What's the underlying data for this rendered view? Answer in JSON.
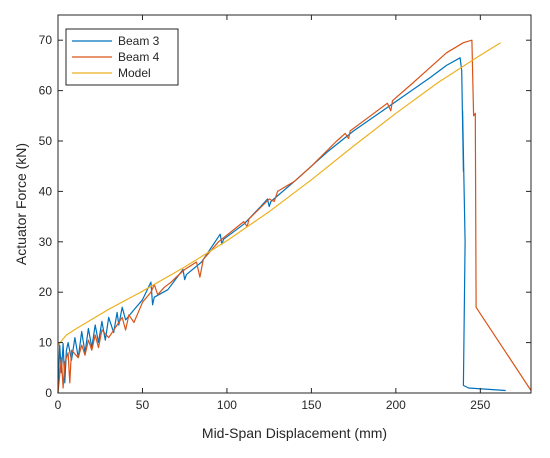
{
  "chart_data": {
    "type": "line",
    "title": "",
    "xlabel": "Mid-Span Displacement (mm)",
    "ylabel": "Actuator Force (kN)",
    "xlim": [
      0,
      280
    ],
    "ylim": [
      0,
      75
    ],
    "x_ticks": [
      0,
      50,
      100,
      150,
      200,
      250
    ],
    "y_ticks": [
      0,
      10,
      20,
      30,
      40,
      50,
      60,
      70
    ],
    "grid": false,
    "legend_position": "top-left",
    "series": [
      {
        "name": "Beam 3",
        "color": "#0072BD",
        "points": [
          [
            0,
            0
          ],
          [
            1,
            9.5
          ],
          [
            2,
            4
          ],
          [
            3,
            9.8
          ],
          [
            4,
            2
          ],
          [
            5,
            8.5
          ],
          [
            6,
            10
          ],
          [
            8,
            6.5
          ],
          [
            10,
            11
          ],
          [
            12,
            7
          ],
          [
            14,
            12.2
          ],
          [
            16,
            8
          ],
          [
            18,
            12.8
          ],
          [
            20,
            9
          ],
          [
            22,
            13.5
          ],
          [
            24,
            10
          ],
          [
            26,
            14.2
          ],
          [
            28,
            10.5
          ],
          [
            30,
            15
          ],
          [
            33,
            12
          ],
          [
            35,
            16
          ],
          [
            36,
            13.5
          ],
          [
            38,
            17
          ],
          [
            40,
            14.5
          ],
          [
            45,
            16.5
          ],
          [
            50,
            18.5
          ],
          [
            55,
            22
          ],
          [
            56,
            17.5
          ],
          [
            57,
            19
          ],
          [
            65,
            20.5
          ],
          [
            74,
            24.5
          ],
          [
            75,
            22.5
          ],
          [
            76,
            23.5
          ],
          [
            85,
            26
          ],
          [
            96,
            31.5
          ],
          [
            97,
            29.5
          ],
          [
            98,
            30.5
          ],
          [
            110,
            33.5
          ],
          [
            120,
            37
          ],
          [
            124,
            38.5
          ],
          [
            125,
            37
          ],
          [
            126,
            38
          ],
          [
            140,
            42
          ],
          [
            150,
            45
          ],
          [
            160,
            48
          ],
          [
            175,
            52
          ],
          [
            190,
            55.5
          ],
          [
            205,
            59
          ],
          [
            220,
            62.5
          ],
          [
            230,
            65
          ],
          [
            238,
            66.5
          ],
          [
            239,
            64
          ],
          [
            240,
            44
          ],
          [
            239.5,
            56
          ],
          [
            241,
            30
          ],
          [
            240,
            1.5
          ],
          [
            243,
            1
          ],
          [
            265,
            0.5
          ]
        ]
      },
      {
        "name": "Beam 4",
        "color": "#D95319",
        "points": [
          [
            0,
            0
          ],
          [
            2,
            7
          ],
          [
            3,
            1
          ],
          [
            4,
            6
          ],
          [
            6,
            8
          ],
          [
            7,
            2
          ],
          [
            8,
            8.5
          ],
          [
            12,
            7
          ],
          [
            14,
            9.5
          ],
          [
            16,
            7.5
          ],
          [
            18,
            10.5
          ],
          [
            20,
            8.5
          ],
          [
            22,
            11.5
          ],
          [
            24,
            9
          ],
          [
            26,
            12.5
          ],
          [
            30,
            11
          ],
          [
            35,
            13.5
          ],
          [
            38,
            15
          ],
          [
            40,
            12.5
          ],
          [
            42,
            15.5
          ],
          [
            45,
            14
          ],
          [
            50,
            18
          ],
          [
            55,
            20
          ],
          [
            57,
            21.5
          ],
          [
            59,
            19.5
          ],
          [
            63,
            21
          ],
          [
            67,
            22
          ],
          [
            70,
            23
          ],
          [
            75,
            24.5
          ],
          [
            82,
            26
          ],
          [
            84,
            23
          ],
          [
            86,
            26.5
          ],
          [
            95,
            30
          ],
          [
            110,
            34
          ],
          [
            112,
            33
          ],
          [
            113,
            34.5
          ],
          [
            125,
            38.5
          ],
          [
            128,
            38
          ],
          [
            130,
            40
          ],
          [
            140,
            42
          ],
          [
            150,
            45
          ],
          [
            165,
            50
          ],
          [
            170,
            51.5
          ],
          [
            172,
            50.5
          ],
          [
            173,
            52
          ],
          [
            185,
            55
          ],
          [
            195,
            57.5
          ],
          [
            197,
            56
          ],
          [
            198,
            58
          ],
          [
            210,
            61.5
          ],
          [
            220,
            64.5
          ],
          [
            230,
            67.5
          ],
          [
            240,
            69.5
          ],
          [
            245,
            70
          ],
          [
            246,
            55
          ],
          [
            247,
            55.5
          ],
          [
            247.5,
            17
          ],
          [
            280,
            0.5
          ]
        ]
      },
      {
        "name": "Model",
        "color": "#EDB120",
        "points": [
          [
            0,
            9.5
          ],
          [
            5,
            11.5
          ],
          [
            10,
            12.6
          ],
          [
            20,
            14.6
          ],
          [
            30,
            16.6
          ],
          [
            50,
            20.2
          ],
          [
            75,
            25
          ],
          [
            100,
            30.2
          ],
          [
            125,
            36
          ],
          [
            150,
            42.3
          ],
          [
            175,
            49
          ],
          [
            200,
            55.5
          ],
          [
            225,
            61.6
          ],
          [
            250,
            67
          ],
          [
            262,
            69.5
          ]
        ]
      }
    ]
  }
}
